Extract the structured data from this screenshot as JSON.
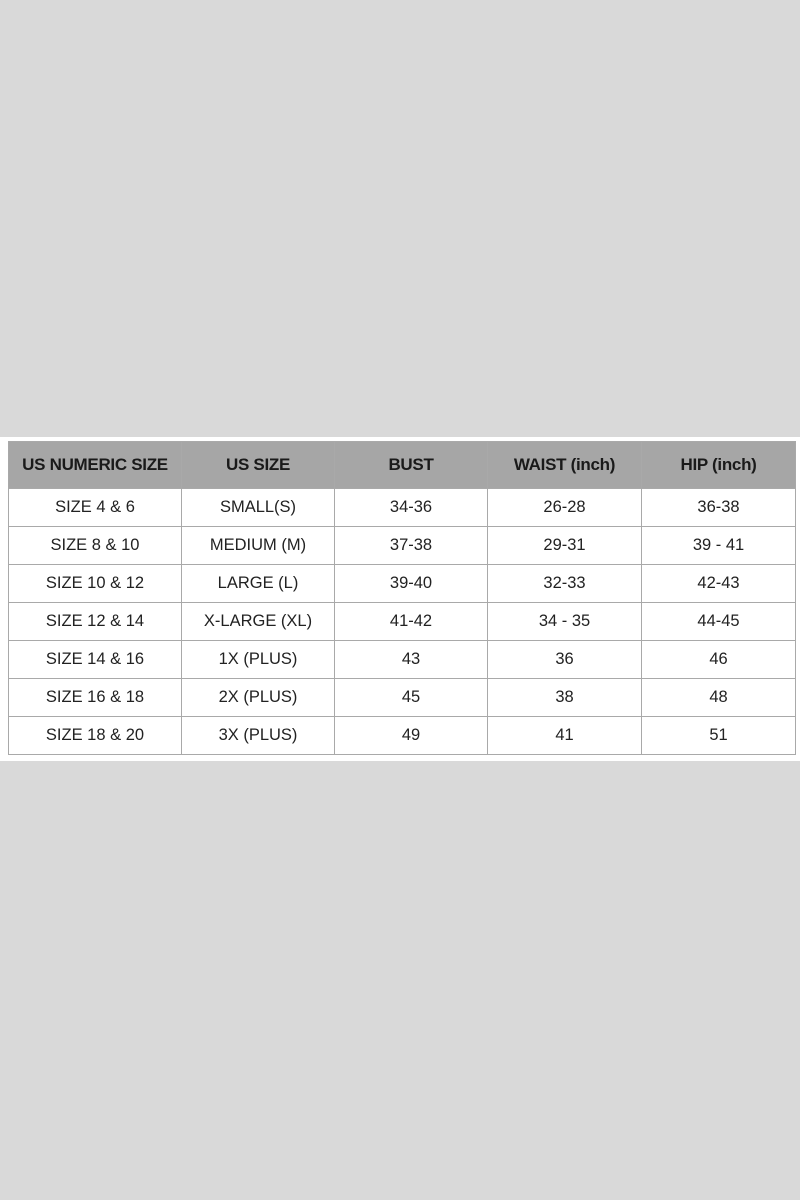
{
  "table": {
    "header": [
      "US NUMERIC SIZE",
      "US SIZE",
      "BUST",
      "WAIST (inch)",
      "HIP (inch)"
    ],
    "rows": [
      [
        "SIZE 4 & 6",
        "SMALL(S)",
        "34-36",
        "26-28",
        "36-38"
      ],
      [
        "SIZE 8 & 10",
        "MEDIUM (M)",
        "37-38",
        "29-31",
        "39 - 41"
      ],
      [
        "SIZE 10 & 12",
        "LARGE (L)",
        "39-40",
        "32-33",
        "42-43"
      ],
      [
        "SIZE 12 & 14",
        "X-LARGE (XL)",
        "41-42",
        "34 - 35",
        "44-45"
      ],
      [
        "SIZE 14 & 16",
        "1X (PLUS)",
        "43",
        "36",
        "46"
      ],
      [
        "SIZE 16 & 18",
        "2X (PLUS)",
        "45",
        "38",
        "48"
      ],
      [
        "SIZE 18 & 20",
        "3X (PLUS)",
        "49",
        "41",
        "51"
      ]
    ]
  }
}
